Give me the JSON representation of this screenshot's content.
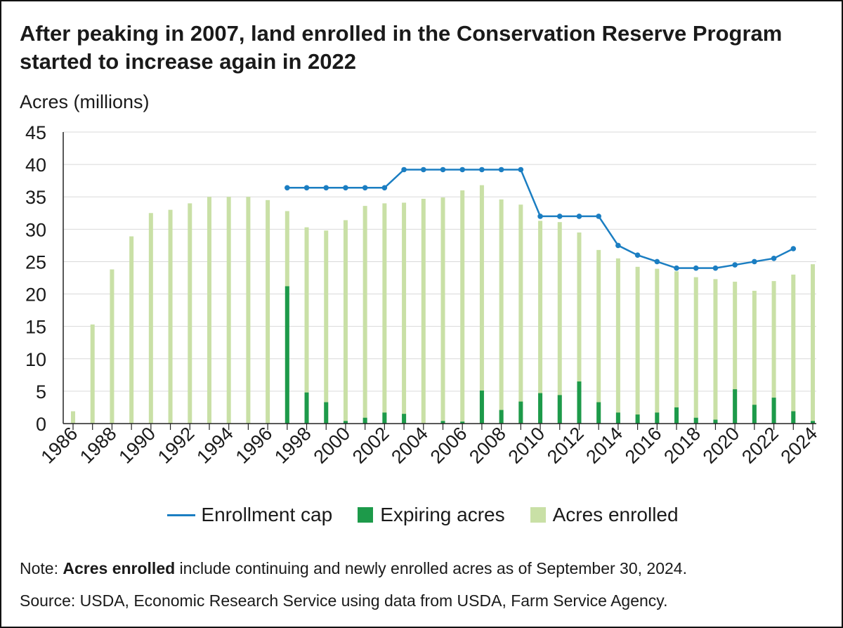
{
  "title": "After peaking in 2007, land enrolled in the Conservation Reserve Program started to increase again in 2022",
  "note_prefix": "Note:",
  "note_bold": "Acres enrolled",
  "note_rest": " include continuing and newly enrolled acres as of September 30, 2024.",
  "source": "Source: USDA, Economic Research Service using data from USDA, Farm Service Agency.",
  "colors": {
    "enrollment_cap": "#1b7ec2",
    "expiring_acres": "#1d9a4a",
    "acres_enrolled": "#c9e0a6",
    "grid": "#d9d9d9",
    "axis": "#222222"
  },
  "legend": {
    "enrollment_cap": "Enrollment cap",
    "expiring_acres": "Expiring acres",
    "acres_enrolled": "Acres enrolled"
  },
  "chart_data": {
    "type": "bar",
    "ylabel": "Acres (millions)",
    "ylim": [
      0,
      45
    ],
    "yticks": [
      0,
      5,
      10,
      15,
      20,
      25,
      30,
      35,
      40,
      45
    ],
    "grid": true,
    "legend_position": "bottom",
    "x": [
      1986,
      1987,
      1988,
      1989,
      1990,
      1991,
      1992,
      1993,
      1994,
      1995,
      1996,
      1997,
      1998,
      1999,
      2000,
      2001,
      2002,
      2003,
      2004,
      2005,
      2006,
      2007,
      2008,
      2009,
      2010,
      2011,
      2012,
      2013,
      2014,
      2015,
      2016,
      2017,
      2018,
      2019,
      2020,
      2021,
      2022,
      2023,
      2024
    ],
    "xtick_labels": [
      "1986",
      "1988",
      "1990",
      "1992",
      "1994",
      "1996",
      "1998",
      "2000",
      "2002",
      "2004",
      "2006",
      "2008",
      "2010",
      "2012",
      "2014",
      "2016",
      "2018",
      "2020",
      "2022",
      "2024"
    ],
    "series": [
      {
        "name": "Acres enrolled",
        "type": "bar",
        "values": [
          1.9,
          15.3,
          23.8,
          28.9,
          32.5,
          33.0,
          34.0,
          35.0,
          35.0,
          35.0,
          34.5,
          32.8,
          30.3,
          29.8,
          31.4,
          33.6,
          34.0,
          34.1,
          34.7,
          34.9,
          36.0,
          36.8,
          34.6,
          33.8,
          31.3,
          31.1,
          29.5,
          26.8,
          25.5,
          24.2,
          23.9,
          23.5,
          22.6,
          22.3,
          21.9,
          20.5,
          22.0,
          23.0,
          24.6
        ]
      },
      {
        "name": "Expiring acres",
        "type": "bar",
        "values": [
          0,
          0,
          0,
          0,
          0,
          0,
          0,
          0,
          0,
          0,
          0,
          21.2,
          4.8,
          3.3,
          0.4,
          0.9,
          1.7,
          1.5,
          0,
          0.4,
          0.3,
          5.1,
          2.1,
          3.4,
          4.7,
          4.4,
          6.5,
          3.3,
          1.7,
          1.4,
          1.7,
          2.5,
          0.9,
          0.6,
          5.3,
          2.9,
          4.0,
          1.9,
          0.4
        ]
      },
      {
        "name": "Enrollment cap",
        "type": "line",
        "x": [
          1997,
          1998,
          1999,
          2000,
          2001,
          2002,
          2003,
          2004,
          2005,
          2006,
          2007,
          2008,
          2009,
          2010,
          2011,
          2012,
          2013,
          2014,
          2015,
          2016,
          2017,
          2018,
          2019,
          2020,
          2021,
          2022,
          2023
        ],
        "values": [
          36.4,
          36.4,
          36.4,
          36.4,
          36.4,
          36.4,
          39.2,
          39.2,
          39.2,
          39.2,
          39.2,
          39.2,
          39.2,
          32.0,
          32.0,
          32.0,
          32.0,
          27.5,
          26.0,
          25.0,
          24.0,
          24.0,
          24.0,
          24.5,
          25.0,
          25.5,
          27.0
        ]
      }
    ]
  }
}
